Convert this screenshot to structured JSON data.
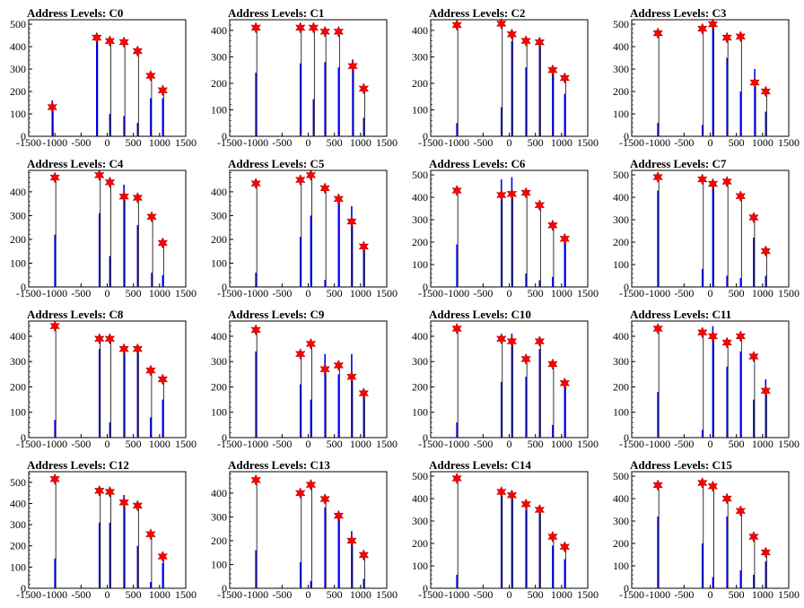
{
  "colors": {
    "spike": "#0000ff",
    "marker": "#ff0000",
    "marker_edge": "#8b0000",
    "axis": "#000000",
    "background": "#ffffff"
  },
  "chart_data": [
    {
      "type": "bar",
      "title": "Address Levels: C0",
      "xlim": [
        -1500,
        1500
      ],
      "ylim": [
        0,
        520
      ],
      "xticks": [
        "-1500",
        "-1000",
        "-500",
        "0",
        "500",
        "1000",
        "1500"
      ],
      "yticks": [
        "0",
        "100",
        "200",
        "300",
        "400",
        "500"
      ],
      "peaks": {
        "x": [
          -1050,
          -200,
          50,
          320,
          580,
          830,
          1060
        ],
        "y": [
          130,
          440,
          425,
          420,
          380,
          270,
          205
        ]
      },
      "spikes": [
        {
          "x": -1050,
          "h": 160
        },
        {
          "x": -1040,
          "h": 50
        },
        {
          "x": -200,
          "h": 460
        },
        {
          "x": 50,
          "h": 100
        },
        {
          "x": 320,
          "h": 90
        },
        {
          "x": 580,
          "h": 60
        },
        {
          "x": 830,
          "h": 170
        },
        {
          "x": 1060,
          "h": 170
        }
      ]
    },
    {
      "type": "bar",
      "title": "Address Levels: C1",
      "xlim": [
        -1500,
        1500
      ],
      "ylim": [
        0,
        440
      ],
      "xticks": [
        "-1500",
        "-1000",
        "-500",
        "0",
        "500",
        "1000",
        "1500"
      ],
      "yticks": [
        "0",
        "100",
        "200",
        "300",
        "400"
      ],
      "peaks": {
        "x": [
          -1000,
          -150,
          100,
          320,
          580,
          850,
          1060
        ],
        "y": [
          410,
          410,
          410,
          395,
          395,
          265,
          180
        ]
      },
      "spikes": [
        {
          "x": -1000,
          "h": 240
        },
        {
          "x": -150,
          "h": 275
        },
        {
          "x": 100,
          "h": 140
        },
        {
          "x": 320,
          "h": 280
        },
        {
          "x": 580,
          "h": 260
        },
        {
          "x": 850,
          "h": 290
        },
        {
          "x": 1060,
          "h": 70
        }
      ]
    },
    {
      "type": "bar",
      "title": "Address Levels: C2",
      "xlim": [
        -1500,
        1500
      ],
      "ylim": [
        0,
        440
      ],
      "xticks": [
        "-1500",
        "-1000",
        "-500",
        "0",
        "500",
        "1000",
        "1500"
      ],
      "yticks": [
        "0",
        "100",
        "200",
        "300",
        "400"
      ],
      "peaks": {
        "x": [
          -1000,
          -150,
          50,
          320,
          580,
          830,
          1060
        ],
        "y": [
          420,
          425,
          385,
          360,
          355,
          250,
          220
        ]
      },
      "spikes": [
        {
          "x": -1000,
          "h": 50
        },
        {
          "x": -150,
          "h": 110
        },
        {
          "x": 50,
          "h": 360
        },
        {
          "x": 320,
          "h": 260
        },
        {
          "x": 580,
          "h": 350
        },
        {
          "x": 830,
          "h": 260
        },
        {
          "x": 1060,
          "h": 160
        }
      ]
    },
    {
      "type": "bar",
      "title": "Address Levels: C3",
      "xlim": [
        -1500,
        1500
      ],
      "ylim": [
        0,
        520
      ],
      "xticks": [
        "-1500",
        "-1000",
        "-500",
        "0",
        "500",
        "1000",
        "1500"
      ],
      "yticks": [
        "0",
        "100",
        "200",
        "300",
        "400",
        "500"
      ],
      "peaks": {
        "x": [
          -1000,
          -150,
          50,
          320,
          580,
          850,
          1060
        ],
        "y": [
          460,
          480,
          500,
          440,
          445,
          240,
          200
        ]
      },
      "spikes": [
        {
          "x": -1000,
          "h": 60
        },
        {
          "x": -150,
          "h": 50
        },
        {
          "x": 50,
          "h": 480
        },
        {
          "x": 320,
          "h": 350
        },
        {
          "x": 580,
          "h": 200
        },
        {
          "x": 850,
          "h": 300
        },
        {
          "x": 1060,
          "h": 110
        }
      ]
    },
    {
      "type": "bar",
      "title": "Address Levels: C4",
      "xlim": [
        -1500,
        1500
      ],
      "ylim": [
        0,
        490
      ],
      "xticks": [
        "-1500",
        "-1000",
        "-500",
        "0",
        "500",
        "1000",
        "1500"
      ],
      "yticks": [
        "0",
        "100",
        "200",
        "300",
        "400"
      ],
      "peaks": {
        "x": [
          -1000,
          -150,
          50,
          320,
          580,
          850,
          1060
        ],
        "y": [
          460,
          470,
          440,
          380,
          375,
          295,
          185
        ]
      },
      "spikes": [
        {
          "x": -1000,
          "h": 220
        },
        {
          "x": -150,
          "h": 310
        },
        {
          "x": 50,
          "h": 130
        },
        {
          "x": 320,
          "h": 430
        },
        {
          "x": 580,
          "h": 260
        },
        {
          "x": 850,
          "h": 60
        },
        {
          "x": 1060,
          "h": 50
        }
      ]
    },
    {
      "type": "bar",
      "title": "Address Levels: C5",
      "xlim": [
        -1500,
        1500
      ],
      "ylim": [
        0,
        490
      ],
      "xticks": [
        "-1500",
        "-1000",
        "-500",
        "0",
        "500",
        "1000",
        "1500"
      ],
      "yticks": [
        "0",
        "100",
        "200",
        "300",
        "400"
      ],
      "peaks": {
        "x": [
          -1000,
          -150,
          50,
          320,
          580,
          830,
          1060
        ],
        "y": [
          435,
          450,
          470,
          415,
          370,
          275,
          170
        ]
      },
      "spikes": [
        {
          "x": -1000,
          "h": 60
        },
        {
          "x": -150,
          "h": 210
        },
        {
          "x": 50,
          "h": 300
        },
        {
          "x": 320,
          "h": 30
        },
        {
          "x": 580,
          "h": 380
        },
        {
          "x": 830,
          "h": 340
        },
        {
          "x": 1060,
          "h": 160
        }
      ]
    },
    {
      "type": "bar",
      "title": "Address Levels: C6",
      "xlim": [
        -1500,
        1500
      ],
      "ylim": [
        0,
        520
      ],
      "xticks": [
        "-1500",
        "-1000",
        "-500",
        "0",
        "500",
        "1000",
        "1500"
      ],
      "yticks": [
        "0",
        "100",
        "200",
        "300",
        "400",
        "500"
      ],
      "peaks": {
        "x": [
          -1000,
          -150,
          50,
          320,
          580,
          830,
          1060
        ],
        "y": [
          430,
          410,
          415,
          420,
          365,
          275,
          215
        ]
      },
      "spikes": [
        {
          "x": -1000,
          "h": 190
        },
        {
          "x": -150,
          "h": 480
        },
        {
          "x": 50,
          "h": 490
        },
        {
          "x": 320,
          "h": 60
        },
        {
          "x": 580,
          "h": 30
        },
        {
          "x": 830,
          "h": 45
        },
        {
          "x": 1060,
          "h": 210
        }
      ]
    },
    {
      "type": "bar",
      "title": "Address Levels: C7",
      "xlim": [
        -1500,
        1500
      ],
      "ylim": [
        0,
        520
      ],
      "xticks": [
        "-1500",
        "-1000",
        "-500",
        "0",
        "500",
        "1000",
        "1500"
      ],
      "yticks": [
        "0",
        "100",
        "200",
        "300",
        "400",
        "500"
      ],
      "peaks": {
        "x": [
          -1000,
          -150,
          50,
          320,
          580,
          830,
          1060
        ],
        "y": [
          490,
          480,
          460,
          470,
          405,
          310,
          160
        ]
      },
      "spikes": [
        {
          "x": -1000,
          "h": 430
        },
        {
          "x": -150,
          "h": 80
        },
        {
          "x": 50,
          "h": 470
        },
        {
          "x": 320,
          "h": 50
        },
        {
          "x": 580,
          "h": 40
        },
        {
          "x": 830,
          "h": 220
        },
        {
          "x": 1060,
          "h": 50
        }
      ]
    },
    {
      "type": "bar",
      "title": "Address Levels: C8",
      "xlim": [
        -1500,
        1500
      ],
      "ylim": [
        0,
        460
      ],
      "xticks": [
        "-1500",
        "-1000",
        "-500",
        "0",
        "500",
        "1000",
        "1500"
      ],
      "yticks": [
        "0",
        "100",
        "200",
        "300",
        "400"
      ],
      "peaks": {
        "x": [
          -1000,
          -150,
          50,
          320,
          580,
          830,
          1060
        ],
        "y": [
          440,
          390,
          390,
          350,
          350,
          265,
          230
        ]
      },
      "spikes": [
        {
          "x": -1000,
          "h": 70
        },
        {
          "x": -150,
          "h": 350
        },
        {
          "x": 50,
          "h": 60
        },
        {
          "x": 320,
          "h": 350
        },
        {
          "x": 580,
          "h": 340
        },
        {
          "x": 830,
          "h": 80
        },
        {
          "x": 1060,
          "h": 150
        }
      ]
    },
    {
      "type": "bar",
      "title": "Address Levels: C9",
      "xlim": [
        -1500,
        1500
      ],
      "ylim": [
        0,
        460
      ],
      "xticks": [
        "-1500",
        "-1000",
        "-500",
        "0",
        "500",
        "1000",
        "1500"
      ],
      "yticks": [
        "0",
        "100",
        "200",
        "300",
        "400"
      ],
      "peaks": {
        "x": [
          -1000,
          -150,
          50,
          320,
          580,
          830,
          1060
        ],
        "y": [
          425,
          330,
          370,
          270,
          285,
          240,
          175
        ]
      },
      "spikes": [
        {
          "x": -1000,
          "h": 340
        },
        {
          "x": -150,
          "h": 210
        },
        {
          "x": 50,
          "h": 150
        },
        {
          "x": 320,
          "h": 330
        },
        {
          "x": 580,
          "h": 250
        },
        {
          "x": 830,
          "h": 330
        },
        {
          "x": 1060,
          "h": 160
        }
      ]
    },
    {
      "type": "bar",
      "title": "Address Levels: C10",
      "xlim": [
        -1500,
        1500
      ],
      "ylim": [
        0,
        460
      ],
      "xticks": [
        "-1500",
        "-1000",
        "-500",
        "0",
        "500",
        "1000",
        "1500"
      ],
      "yticks": [
        "0",
        "100",
        "200",
        "300",
        "400"
      ],
      "peaks": {
        "x": [
          -1000,
          -150,
          50,
          320,
          580,
          830,
          1060
        ],
        "y": [
          430,
          390,
          380,
          310,
          380,
          290,
          215
        ]
      },
      "spikes": [
        {
          "x": -1000,
          "h": 60
        },
        {
          "x": -150,
          "h": 220
        },
        {
          "x": 50,
          "h": 410
        },
        {
          "x": 320,
          "h": 240
        },
        {
          "x": 580,
          "h": 350
        },
        {
          "x": 830,
          "h": 50
        },
        {
          "x": 1060,
          "h": 220
        }
      ]
    },
    {
      "type": "bar",
      "title": "Address Levels: C11",
      "xlim": [
        -1500,
        1500
      ],
      "ylim": [
        0,
        460
      ],
      "xticks": [
        "-1500",
        "-1000",
        "-500",
        "0",
        "500",
        "1000",
        "1500"
      ],
      "yticks": [
        "0",
        "100",
        "200",
        "300",
        "400"
      ],
      "peaks": {
        "x": [
          -1000,
          -150,
          50,
          320,
          580,
          830,
          1060
        ],
        "y": [
          430,
          415,
          400,
          375,
          400,
          320,
          185
        ]
      },
      "spikes": [
        {
          "x": -1000,
          "h": 180
        },
        {
          "x": -150,
          "h": 30
        },
        {
          "x": 50,
          "h": 440
        },
        {
          "x": 320,
          "h": 280
        },
        {
          "x": 580,
          "h": 340
        },
        {
          "x": 830,
          "h": 150
        },
        {
          "x": 1060,
          "h": 230
        }
      ]
    },
    {
      "type": "bar",
      "title": "Address Levels: C12",
      "xlim": [
        -1500,
        1500
      ],
      "ylim": [
        0,
        550
      ],
      "xticks": [
        "-1500",
        "-1000",
        "-500",
        "0",
        "500",
        "1000",
        "1500"
      ],
      "yticks": [
        "0",
        "100",
        "200",
        "300",
        "400",
        "500"
      ],
      "peaks": {
        "x": [
          -1000,
          -150,
          50,
          320,
          580,
          830,
          1060
        ],
        "y": [
          515,
          460,
          455,
          405,
          390,
          255,
          150
        ]
      },
      "spikes": [
        {
          "x": -1000,
          "h": 140
        },
        {
          "x": -150,
          "h": 310
        },
        {
          "x": 50,
          "h": 310
        },
        {
          "x": 320,
          "h": 440
        },
        {
          "x": 580,
          "h": 200
        },
        {
          "x": 830,
          "h": 30
        },
        {
          "x": 1060,
          "h": 120
        }
      ]
    },
    {
      "type": "bar",
      "title": "Address Levels: C13",
      "xlim": [
        -1500,
        1500
      ],
      "ylim": [
        0,
        490
      ],
      "xticks": [
        "-1500",
        "-1000",
        "-500",
        "0",
        "500",
        "1000",
        "1500"
      ],
      "yticks": [
        "0",
        "100",
        "200",
        "300",
        "400"
      ],
      "peaks": {
        "x": [
          -1000,
          -150,
          50,
          320,
          580,
          830,
          1060
        ],
        "y": [
          455,
          400,
          435,
          375,
          305,
          200,
          140
        ]
      },
      "spikes": [
        {
          "x": -1000,
          "h": 160
        },
        {
          "x": -150,
          "h": 110
        },
        {
          "x": 50,
          "h": 30
        },
        {
          "x": 320,
          "h": 340
        },
        {
          "x": 580,
          "h": 320
        },
        {
          "x": 830,
          "h": 240
        },
        {
          "x": 1060,
          "h": 40
        }
      ]
    },
    {
      "type": "bar",
      "title": "Address Levels: C14",
      "xlim": [
        -1500,
        1500
      ],
      "ylim": [
        0,
        520
      ],
      "xticks": [
        "-1500",
        "-1000",
        "-500",
        "0",
        "500",
        "1000",
        "1500"
      ],
      "yticks": [
        "0",
        "100",
        "200",
        "300",
        "400",
        "500"
      ],
      "peaks": {
        "x": [
          -1000,
          -150,
          50,
          320,
          580,
          830,
          1060
        ],
        "y": [
          490,
          430,
          415,
          375,
          350,
          230,
          185
        ]
      },
      "spikes": [
        {
          "x": -1000,
          "h": 60
        },
        {
          "x": -150,
          "h": 410
        },
        {
          "x": 50,
          "h": 400
        },
        {
          "x": 320,
          "h": 350
        },
        {
          "x": 580,
          "h": 330
        },
        {
          "x": 830,
          "h": 190
        },
        {
          "x": 1060,
          "h": 130
        }
      ]
    },
    {
      "type": "bar",
      "title": "Address Levels: C15",
      "xlim": [
        -1500,
        1500
      ],
      "ylim": [
        0,
        520
      ],
      "xticks": [
        "-1500",
        "-1000",
        "-500",
        "0",
        "500",
        "1000",
        "1500"
      ],
      "yticks": [
        "0",
        "100",
        "200",
        "300",
        "400",
        "500"
      ],
      "peaks": {
        "x": [
          -1000,
          -150,
          50,
          320,
          580,
          830,
          1060
        ],
        "y": [
          460,
          470,
          455,
          400,
          345,
          230,
          160
        ]
      },
      "spikes": [
        {
          "x": -1000,
          "h": 320
        },
        {
          "x": -150,
          "h": 200
        },
        {
          "x": 50,
          "h": 50
        },
        {
          "x": 320,
          "h": 320
        },
        {
          "x": 580,
          "h": 80
        },
        {
          "x": 830,
          "h": 60
        },
        {
          "x": 1060,
          "h": 120
        }
      ]
    }
  ]
}
